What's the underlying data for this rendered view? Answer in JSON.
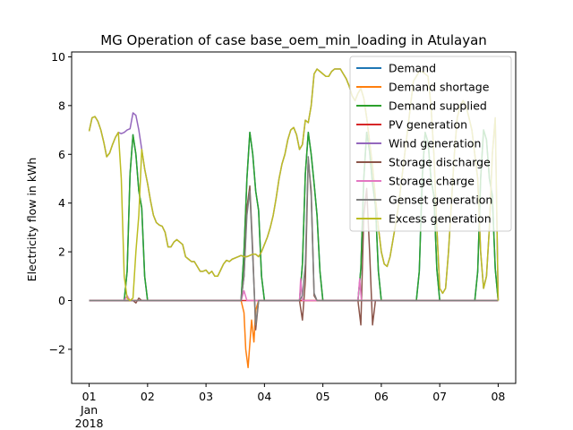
{
  "chart_data": {
    "type": "line",
    "title": "MG Operation of case base_oem_min_loading in Atulayan",
    "xlabel": "",
    "ylabel": "Electricity flow in kWh",
    "xlim": [
      -0.3,
      7.3
    ],
    "ylim": [
      -3.4,
      10.2
    ],
    "x_ticks": [
      {
        "value": 0,
        "lines": [
          "01",
          "Jan",
          "2018"
        ]
      },
      {
        "value": 1,
        "lines": [
          "02"
        ]
      },
      {
        "value": 2,
        "lines": [
          "03"
        ]
      },
      {
        "value": 3,
        "lines": [
          "04"
        ]
      },
      {
        "value": 4,
        "lines": [
          "05"
        ]
      },
      {
        "value": 5,
        "lines": [
          "06"
        ]
      },
      {
        "value": 6,
        "lines": [
          "07"
        ]
      },
      {
        "value": 7,
        "lines": [
          "08"
        ]
      }
    ],
    "y_ticks": [
      -2,
      0,
      2,
      4,
      6,
      8,
      10
    ],
    "grid": false,
    "legend_position": "top-right",
    "series": [
      {
        "name": "Demand",
        "color": "#1f77b4",
        "x": [
          0,
          0.6,
          0.65,
          0.7,
          0.75,
          0.8,
          0.85,
          0.9,
          0.95,
          1.0,
          2.6,
          2.65,
          2.7,
          2.75,
          2.8,
          2.85,
          2.9,
          2.95,
          3.0,
          3.6,
          3.65,
          3.7,
          3.75,
          3.8,
          3.85,
          3.9,
          3.95,
          4.0,
          4.6,
          4.65,
          4.7,
          4.75,
          4.8,
          4.85,
          4.9,
          4.95,
          5.0,
          5.6,
          5.65,
          5.7,
          5.75,
          5.8,
          5.85,
          5.9,
          5.95,
          6.0,
          6.6,
          6.65,
          6.7,
          6.75,
          6.8,
          6.85,
          6.9,
          6.95,
          7.0
        ],
        "y": [
          0,
          0,
          1.2,
          5.2,
          6.8,
          6.0,
          4.5,
          3.8,
          1.0,
          0,
          0,
          2.0,
          5.0,
          6.9,
          6.0,
          4.5,
          3.7,
          1.0,
          0,
          0,
          1.5,
          5.2,
          6.9,
          6.0,
          4.8,
          3.5,
          1.2,
          0,
          0,
          1.3,
          5.0,
          6.9,
          6.1,
          4.8,
          3.9,
          1.2,
          0,
          0,
          1.2,
          5.0,
          6.9,
          6.5,
          5.0,
          4.3,
          1.3,
          0,
          0,
          1.2,
          5.0,
          7.0,
          6.6,
          5.0,
          4.3,
          1.3,
          0
        ]
      },
      {
        "name": "Demand shortage",
        "color": "#ff7f0e",
        "x": [
          0,
          2.6,
          2.65,
          2.68,
          2.72,
          2.78,
          2.82,
          2.85,
          2.9,
          3.0,
          7.0
        ],
        "y": [
          0,
          0,
          -0.5,
          -2.0,
          -2.75,
          -0.8,
          -1.7,
          -0.4,
          0,
          0,
          0
        ]
      },
      {
        "name": "Demand supplied",
        "color": "#2ca02c",
        "x": [
          0,
          0.6,
          0.65,
          0.7,
          0.75,
          0.8,
          0.85,
          0.9,
          0.95,
          1.0,
          2.6,
          2.65,
          2.7,
          2.75,
          2.8,
          2.85,
          2.9,
          2.95,
          3.0,
          3.6,
          3.65,
          3.7,
          3.75,
          3.8,
          3.85,
          3.9,
          3.95,
          4.0,
          4.6,
          4.65,
          4.7,
          4.75,
          4.8,
          4.85,
          4.9,
          4.95,
          5.0,
          5.6,
          5.65,
          5.7,
          5.75,
          5.8,
          5.85,
          5.9,
          5.95,
          6.0,
          6.6,
          6.65,
          6.7,
          6.75,
          6.8,
          6.85,
          6.9,
          6.95,
          7.0
        ],
        "y": [
          0,
          0,
          1.2,
          5.2,
          6.8,
          6.0,
          4.5,
          3.8,
          1.0,
          0,
          0,
          2.0,
          5.0,
          6.9,
          6.0,
          4.5,
          3.7,
          1.0,
          0,
          0,
          1.5,
          5.2,
          6.9,
          6.0,
          4.8,
          3.5,
          1.2,
          0,
          0,
          1.3,
          5.0,
          6.9,
          6.1,
          4.8,
          3.9,
          1.2,
          0,
          0,
          1.2,
          5.0,
          6.9,
          6.5,
          5.0,
          4.3,
          1.3,
          0,
          0,
          1.2,
          5.0,
          7.0,
          6.6,
          5.0,
          4.3,
          1.3,
          0
        ]
      },
      {
        "name": "PV generation",
        "color": "#d62728",
        "x": [
          0,
          7.0
        ],
        "y": [
          0,
          0
        ]
      },
      {
        "name": "Wind generation",
        "color": "#9467bd",
        "x": [
          0,
          0.05,
          0.1,
          0.15,
          0.2,
          0.25,
          0.3,
          0.35,
          0.4,
          0.45,
          0.5,
          0.55,
          0.6,
          0.65,
          0.7,
          0.75,
          0.8,
          0.85,
          0.9,
          0.95,
          1.0,
          1.05,
          1.1,
          1.15,
          1.2,
          1.25,
          1.3,
          1.35,
          1.4,
          1.45,
          1.5,
          1.55,
          1.6,
          1.65,
          1.7,
          1.75,
          1.8,
          1.85,
          1.9,
          1.95,
          2.0,
          2.05,
          2.1,
          2.15,
          2.2,
          2.25,
          2.3,
          2.35,
          2.4,
          2.45,
          2.5,
          2.55,
          2.6,
          2.65,
          2.7,
          2.75,
          2.8,
          2.85,
          2.9,
          2.95,
          3.0,
          3.05,
          3.1,
          3.15,
          3.2,
          3.25,
          3.3,
          3.35,
          3.4,
          3.45,
          3.5,
          3.55,
          3.6,
          3.65,
          3.7,
          3.75,
          3.8,
          3.85,
          3.9,
          3.95,
          4.0,
          4.05,
          4.1,
          4.15,
          4.2,
          4.25,
          4.3,
          4.35,
          4.4,
          4.45,
          4.5,
          4.55,
          4.6,
          4.65,
          4.7,
          4.75,
          4.8,
          4.85,
          4.9,
          4.95,
          5.0,
          5.05,
          5.1,
          5.15,
          5.2,
          5.25,
          5.3,
          5.35,
          5.4,
          5.45,
          5.5,
          5.55,
          5.6,
          5.65,
          5.7,
          5.75,
          5.8,
          5.85,
          5.9,
          5.95,
          6.0,
          6.05,
          6.1,
          6.15,
          6.2,
          6.25,
          6.3,
          6.35,
          6.4,
          6.45,
          6.5,
          6.55,
          6.6,
          6.65,
          6.7,
          6.75,
          6.8,
          6.85,
          6.9,
          6.95,
          7.0
        ],
        "y": [
          6.95,
          7.5,
          7.55,
          7.35,
          7.0,
          6.5,
          5.9,
          6.05,
          6.4,
          6.7,
          6.9,
          6.85,
          6.9,
          7.0,
          7.05,
          7.7,
          7.6,
          7.0,
          6.2,
          5.4,
          4.8,
          4.1,
          3.5,
          3.2,
          3.1,
          3.05,
          2.8,
          2.2,
          2.2,
          2.4,
          2.5,
          2.4,
          2.3,
          1.8,
          1.7,
          1.6,
          1.6,
          1.4,
          1.2,
          1.2,
          1.25,
          1.1,
          1.2,
          1.0,
          1.0,
          1.25,
          1.5,
          1.65,
          1.6,
          1.7,
          1.75,
          1.8,
          1.85,
          1.8,
          1.8,
          1.85,
          1.9,
          1.9,
          1.8,
          2.0,
          2.3,
          2.6,
          3.0,
          3.5,
          4.2,
          5.0,
          5.6,
          6.0,
          6.6,
          7.0,
          7.1,
          6.8,
          6.2,
          6.4,
          7.4,
          7.3,
          8.0,
          9.3,
          9.5,
          9.4,
          9.3,
          9.2,
          9.2,
          9.4,
          9.5,
          9.5,
          9.5,
          9.3,
          9.1,
          8.8,
          8.4,
          8.2,
          8.5,
          8.7,
          8.3,
          7.5,
          6.5,
          5.5,
          4.2,
          3.0,
          2.0,
          1.5,
          1.4,
          1.8,
          2.5,
          3.2,
          4.0,
          5.0,
          6.0,
          7.0,
          8.0,
          9.0,
          9.2,
          9.4,
          9.4,
          9.3,
          9.2,
          8.0,
          6.0,
          3.0,
          0.5,
          0.3,
          0.5,
          2.0,
          4.0,
          6.0,
          7.5,
          8.0,
          8.2,
          8.0,
          7.5,
          7.0,
          6.0,
          5.0,
          2.0,
          0.5,
          1.0,
          3.0,
          6.0,
          7.5,
          0
        ]
      },
      {
        "name": "Storage discharge",
        "color": "#8c564b",
        "x": [
          0,
          0.75,
          0.8,
          0.85,
          0.9,
          2.6,
          2.65,
          2.7,
          2.75,
          2.8,
          2.85,
          2.9,
          3.0,
          3.6,
          3.65,
          3.7,
          3.75,
          3.8,
          3.85,
          3.9,
          3.95,
          4.0,
          4.6,
          4.65,
          4.7,
          4.75,
          4.8,
          4.85,
          4.9,
          5.0,
          7.0
        ],
        "y": [
          0,
          0,
          -0.1,
          0.1,
          0,
          0,
          1.0,
          3.8,
          4.7,
          2.0,
          -1.2,
          0,
          0,
          0,
          -0.8,
          0.8,
          5.8,
          4.5,
          0.2,
          0,
          0,
          0,
          0,
          -1.0,
          3.5,
          4.6,
          2.0,
          -1.0,
          0,
          0,
          0
        ]
      },
      {
        "name": "Storage charge",
        "color": "#e377c2",
        "x": [
          0,
          0.6,
          0.65,
          0.7,
          1.0,
          2.6,
          2.65,
          2.7,
          2.75,
          3.0,
          3.6,
          3.62,
          3.65,
          3.7,
          4.0,
          4.6,
          4.63,
          4.66,
          4.7,
          5.0,
          7.0
        ],
        "y": [
          0,
          0,
          0.2,
          0,
          0,
          0,
          0.4,
          0,
          0,
          0,
          0,
          0.9,
          0,
          0,
          0,
          0,
          0.9,
          0,
          0,
          0,
          0
        ]
      },
      {
        "name": "Genset generation",
        "color": "#7f7f7f",
        "x": [
          0,
          2.6,
          2.65,
          2.7,
          2.75,
          2.8,
          2.85,
          2.9,
          3.0,
          3.6,
          3.65,
          3.7,
          3.75,
          3.8,
          3.85,
          3.9,
          3.95,
          4.0,
          7.0
        ],
        "y": [
          0,
          0,
          1.0,
          3.5,
          4.5,
          1.8,
          -1.0,
          0,
          0,
          0,
          0.2,
          1.5,
          5.9,
          4.3,
          0.3,
          0,
          0,
          0,
          0
        ]
      },
      {
        "name": "Excess generation",
        "color": "#bcbd22",
        "x": [
          0,
          0.05,
          0.1,
          0.15,
          0.2,
          0.25,
          0.3,
          0.35,
          0.4,
          0.45,
          0.5,
          0.55,
          0.6,
          0.65,
          0.7,
          0.75,
          0.8,
          0.85,
          0.9,
          0.95,
          1.0,
          1.05,
          1.1,
          1.15,
          1.2,
          1.25,
          1.3,
          1.35,
          1.4,
          1.45,
          1.5,
          1.55,
          1.6,
          1.65,
          1.7,
          1.75,
          1.8,
          1.85,
          1.9,
          1.95,
          2.0,
          2.05,
          2.1,
          2.15,
          2.2,
          2.25,
          2.3,
          2.35,
          2.4,
          2.45,
          2.5,
          2.55,
          2.6,
          2.65,
          2.7,
          2.75,
          2.8,
          2.85,
          2.9,
          2.95,
          3.0,
          3.05,
          3.1,
          3.15,
          3.2,
          3.25,
          3.3,
          3.35,
          3.4,
          3.45,
          3.5,
          3.55,
          3.6,
          3.65,
          3.7,
          3.75,
          3.8,
          3.85,
          3.9,
          3.95,
          4.0,
          4.05,
          4.1,
          4.15,
          4.2,
          4.25,
          4.3,
          4.35,
          4.4,
          4.45,
          4.5,
          4.55,
          4.6,
          4.65,
          4.7,
          4.75,
          4.8,
          4.85,
          4.9,
          4.95,
          5.0,
          5.05,
          5.1,
          5.15,
          5.2,
          5.25,
          5.3,
          5.35,
          5.4,
          5.45,
          5.5,
          5.55,
          5.6,
          5.65,
          5.7,
          5.75,
          5.8,
          5.85,
          5.9,
          5.95,
          6.0,
          6.05,
          6.1,
          6.15,
          6.2,
          6.25,
          6.3,
          6.35,
          6.4,
          6.45,
          6.5,
          6.55,
          6.6,
          6.65,
          6.7,
          6.75,
          6.8,
          6.85,
          6.9,
          6.95,
          7.0
        ],
        "y": [
          6.95,
          7.5,
          7.55,
          7.35,
          7.0,
          6.5,
          5.9,
          6.05,
          6.4,
          6.7,
          6.9,
          5.0,
          1.0,
          0.1,
          0,
          0.1,
          2.0,
          3.5,
          6.2,
          5.4,
          4.8,
          4.1,
          3.5,
          3.2,
          3.1,
          3.05,
          2.8,
          2.2,
          2.2,
          2.4,
          2.5,
          2.4,
          2.3,
          1.8,
          1.7,
          1.6,
          1.6,
          1.4,
          1.2,
          1.2,
          1.25,
          1.1,
          1.2,
          1.0,
          1.0,
          1.25,
          1.5,
          1.65,
          1.6,
          1.7,
          1.75,
          1.8,
          1.85,
          1.8,
          1.8,
          1.85,
          1.9,
          1.9,
          1.8,
          2.0,
          2.3,
          2.6,
          3.0,
          3.5,
          4.2,
          5.0,
          5.6,
          6.0,
          6.6,
          7.0,
          7.1,
          6.8,
          6.2,
          6.4,
          7.4,
          7.3,
          8.0,
          9.3,
          9.5,
          9.4,
          9.3,
          9.2,
          9.2,
          9.4,
          9.5,
          9.5,
          9.5,
          9.3,
          9.1,
          8.8,
          8.4,
          8.2,
          8.5,
          8.7,
          8.3,
          7.5,
          6.5,
          5.5,
          4.2,
          3.0,
          2.0,
          1.5,
          1.4,
          1.8,
          2.5,
          3.2,
          4.0,
          5.0,
          6.0,
          7.0,
          8.0,
          9.0,
          9.2,
          9.4,
          9.4,
          9.3,
          9.2,
          8.0,
          6.0,
          3.0,
          0.5,
          0.3,
          0.5,
          2.0,
          4.0,
          6.0,
          7.5,
          8.0,
          8.2,
          8.0,
          7.5,
          7.0,
          6.0,
          5.0,
          2.0,
          0.5,
          1.0,
          3.0,
          6.0,
          7.5,
          0
        ]
      }
    ]
  }
}
